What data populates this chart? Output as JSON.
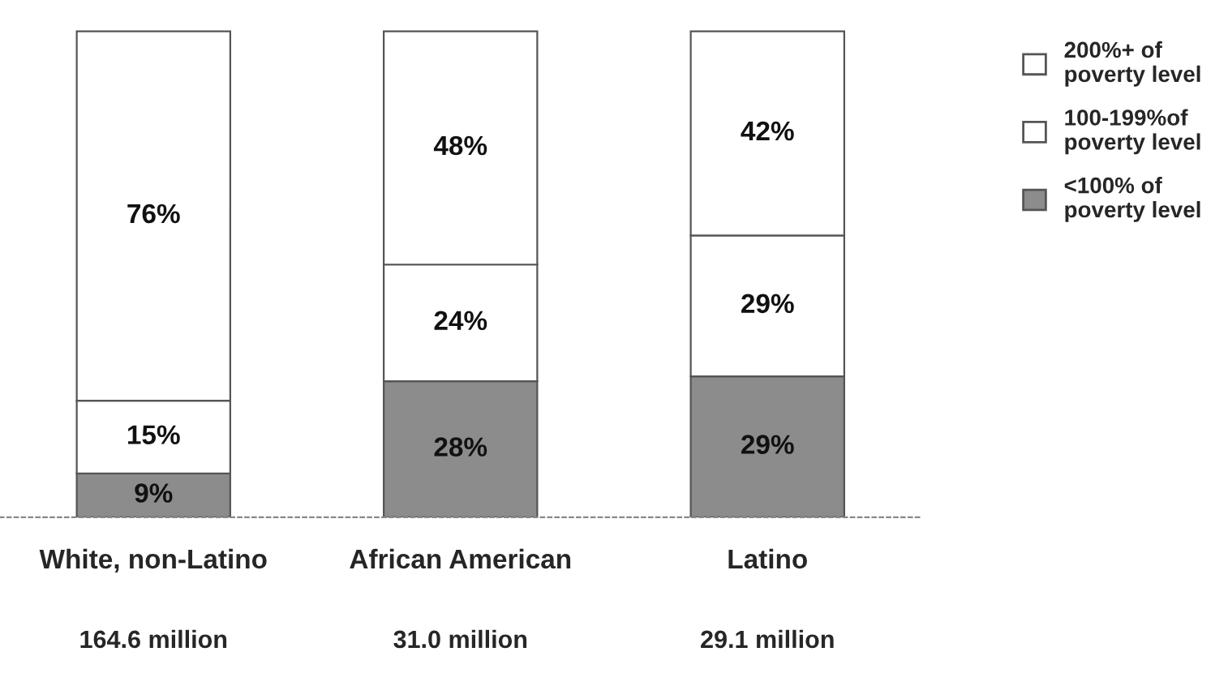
{
  "chart_data": {
    "type": "bar",
    "stacked": true,
    "categories": [
      "White, non-Latino",
      "African American",
      "Latino"
    ],
    "series": [
      {
        "name": "<100% of poverty level",
        "color": "#8c8c8c",
        "values": [
          9,
          28,
          29
        ],
        "value_labels": [
          "9%",
          "28%",
          "29%"
        ]
      },
      {
        "name": "100-199%of poverty level",
        "color": "#ffffff",
        "values": [
          15,
          24,
          29
        ],
        "value_labels": [
          "15%",
          "24%",
          "29%"
        ]
      },
      {
        "name": "200%+ of poverty level",
        "color": "#ffffff",
        "values": [
          76,
          48,
          42
        ],
        "value_labels": [
          "76%",
          "48%",
          "42%"
        ]
      }
    ],
    "legend": "right",
    "grid": false,
    "annotations": [
      "164.6 million",
      "31.0 million",
      "29.1 million"
    ]
  }
}
